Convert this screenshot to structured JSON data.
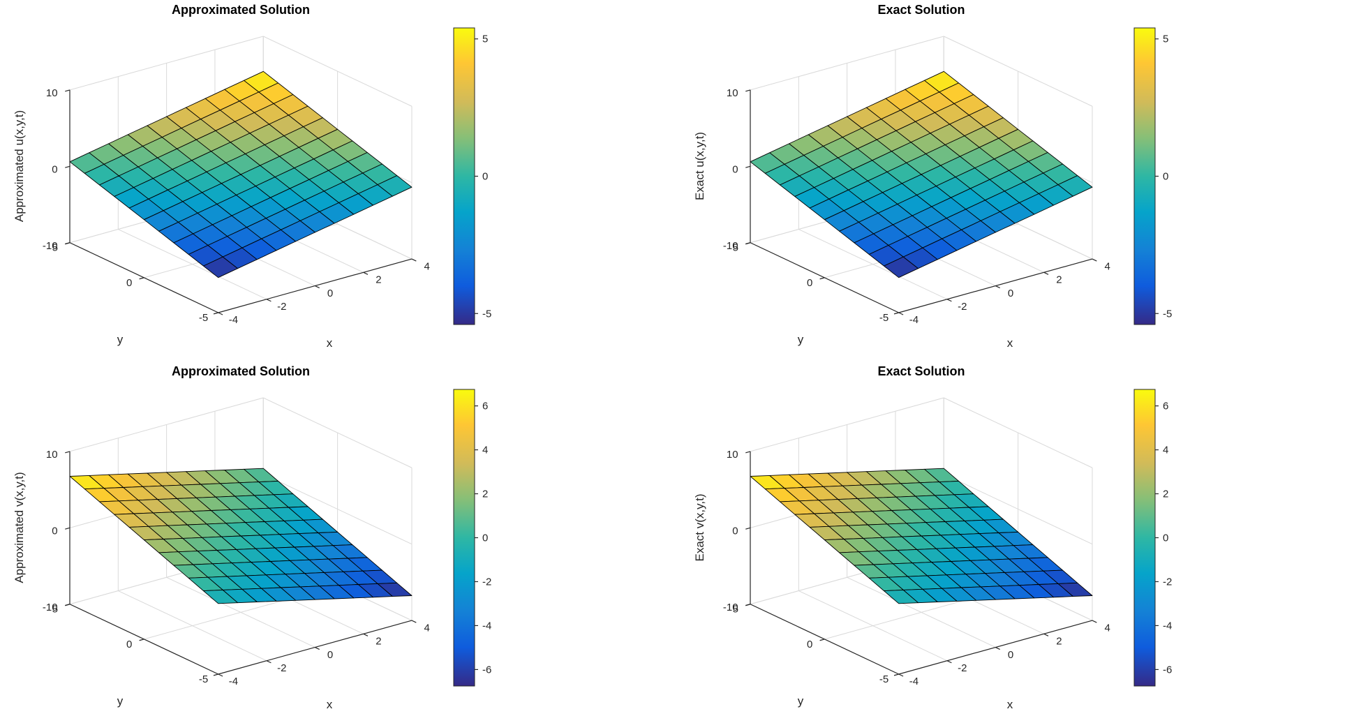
{
  "figure": {
    "background": "#ffffff",
    "rows": 2,
    "columns": 2
  },
  "view": {
    "azimuth": -37.5,
    "elevation": 30
  },
  "axis_colors": {
    "grid": "#d9d9d9",
    "axis_line": "#262626",
    "tick_text": "#262626",
    "title_text": "#000000",
    "surface_edge": "#000000"
  },
  "colormap": {
    "name": "parula",
    "stops": [
      {
        "t": 0.0,
        "color": "#352a87"
      },
      {
        "t": 0.13,
        "color": "#0f5cdd"
      },
      {
        "t": 0.25,
        "color": "#1481d6"
      },
      {
        "t": 0.38,
        "color": "#06a4ca"
      },
      {
        "t": 0.5,
        "color": "#2eb7a4"
      },
      {
        "t": 0.63,
        "color": "#87bf77"
      },
      {
        "t": 0.75,
        "color": "#d1bb59"
      },
      {
        "t": 0.88,
        "color": "#fec634"
      },
      {
        "t": 1.0,
        "color": "#f9fb0e"
      }
    ]
  },
  "chart_data": [
    {
      "type": "surface",
      "title": "Approximated Solution",
      "xlabel": "x",
      "ylabel": "y",
      "zlabel": "Approximated u(x,y,t)",
      "x_range": [
        -4,
        4
      ],
      "y_range": [
        -5,
        5
      ],
      "z_range": [
        -10,
        10
      ],
      "x_ticks": [
        -4,
        -2,
        0,
        2,
        4
      ],
      "y_ticks": [
        -5,
        0,
        5
      ],
      "z_ticks": [
        -10,
        0,
        10
      ],
      "surface": {
        "formula": "u(x,y,t) = 0.6*(x + y)",
        "coeff_x": 0.6,
        "coeff_y": 0.6,
        "coeff_const": 0,
        "x_divisions": 10,
        "y_divisions": 10
      },
      "clim": [
        -5.4,
        5.4
      ],
      "colorbar_ticks": [
        -5,
        0,
        5
      ]
    },
    {
      "type": "surface",
      "title": "Exact Solution",
      "xlabel": "x",
      "ylabel": "y",
      "zlabel": "Exact u(x,y,t)",
      "x_range": [
        -4,
        4
      ],
      "y_range": [
        -5,
        5
      ],
      "z_range": [
        -10,
        10
      ],
      "x_ticks": [
        -4,
        -2,
        0,
        2,
        4
      ],
      "y_ticks": [
        -5,
        0,
        5
      ],
      "z_ticks": [
        -10,
        0,
        10
      ],
      "surface": {
        "formula": "u(x,y,t) = 0.6*(x + y)",
        "coeff_x": 0.6,
        "coeff_y": 0.6,
        "coeff_const": 0,
        "x_divisions": 10,
        "y_divisions": 10
      },
      "clim": [
        -5.4,
        5.4
      ],
      "colorbar_ticks": [
        -5,
        0,
        5
      ]
    },
    {
      "type": "surface",
      "title": "Approximated Solution",
      "xlabel": "x",
      "ylabel": "y",
      "zlabel": "Approximated v(x,y,t)",
      "x_range": [
        -4,
        4
      ],
      "y_range": [
        -5,
        5
      ],
      "z_range": [
        -10,
        10
      ],
      "x_ticks": [
        -4,
        -2,
        0,
        2,
        4
      ],
      "y_ticks": [
        -5,
        0,
        5
      ],
      "z_ticks": [
        -10,
        0,
        10
      ],
      "surface": {
        "formula": "v(x,y,t) = 0.75*(y - x)",
        "coeff_x": -0.75,
        "coeff_y": 0.75,
        "coeff_const": 0,
        "x_divisions": 10,
        "y_divisions": 10
      },
      "clim": [
        -6.75,
        6.75
      ],
      "colorbar_ticks": [
        -6,
        -4,
        -2,
        0,
        2,
        4,
        6
      ]
    },
    {
      "type": "surface",
      "title": "Exact Solution",
      "xlabel": "x",
      "ylabel": "y",
      "zlabel": "Exact v(x,y,t)",
      "x_range": [
        -4,
        4
      ],
      "y_range": [
        -5,
        5
      ],
      "z_range": [
        -10,
        10
      ],
      "x_ticks": [
        -4,
        -2,
        0,
        2,
        4
      ],
      "y_ticks": [
        -5,
        0,
        5
      ],
      "z_ticks": [
        -10,
        0,
        10
      ],
      "surface": {
        "formula": "v(x,y,t) = 0.75*(y - x)",
        "coeff_x": -0.75,
        "coeff_y": 0.75,
        "coeff_const": 0,
        "x_divisions": 10,
        "y_divisions": 10
      },
      "clim": [
        -6.75,
        6.75
      ],
      "colorbar_ticks": [
        -6,
        -4,
        -2,
        0,
        2,
        4,
        6
      ]
    }
  ]
}
